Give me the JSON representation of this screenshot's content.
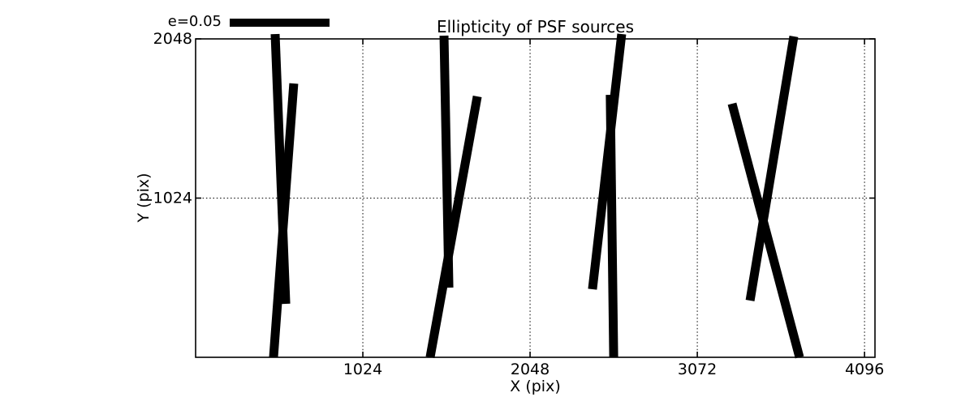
{
  "figure": {
    "background": "#ffffff",
    "foreground": "#000000"
  },
  "chart_data": {
    "type": "line",
    "subtype": "ellipticity-stick-map",
    "title": "Ellipticity of PSF sources",
    "xlabel": "X (pix)",
    "ylabel": "Y (pix)",
    "xlim": [
      0,
      4160
    ],
    "ylim": [
      0,
      2048
    ],
    "xticks": [
      1024,
      2048,
      3072,
      4096
    ],
    "yticks": [
      1024,
      2048
    ],
    "grid": {
      "style": "dotted",
      "color": "#000000"
    },
    "legend": {
      "label": "e=0.05",
      "position": "top-left-outside"
    },
    "stick_color": "#000000",
    "sticks": [
      {
        "x1": 487,
        "y1": 2079,
        "x2": 552,
        "y2": 344
      },
      {
        "x1": 601,
        "y1": 1761,
        "x2": 477,
        "y2": 0
      },
      {
        "x1": 1521,
        "y1": 2069,
        "x2": 1551,
        "y2": 448
      },
      {
        "x1": 1725,
        "y1": 1678,
        "x2": 1436,
        "y2": 0
      },
      {
        "x1": 2609,
        "y1": 2079,
        "x2": 2430,
        "y2": 438
      },
      {
        "x1": 2539,
        "y1": 1688,
        "x2": 2560,
        "y2": 0
      },
      {
        "x1": 3663,
        "y1": 2064,
        "x2": 3395,
        "y2": 365
      },
      {
        "x1": 3285,
        "y1": 1631,
        "x2": 3698,
        "y2": 0
      }
    ]
  }
}
